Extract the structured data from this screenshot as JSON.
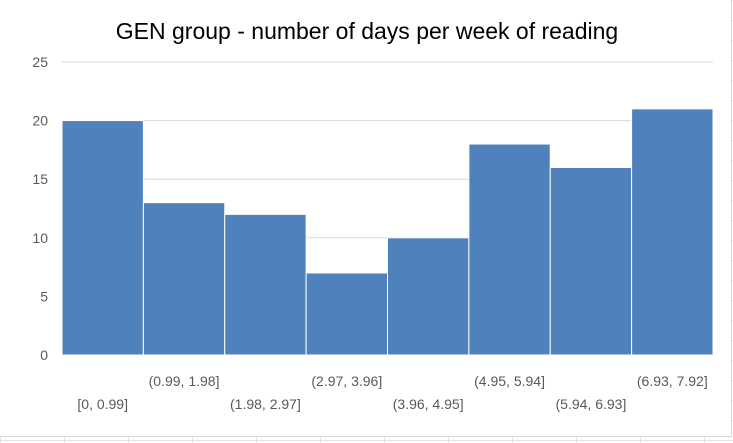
{
  "chart_data": {
    "type": "bar",
    "title": "GEN group - number of days per week of reading",
    "categories": [
      "[0, 0.99]",
      "(0.99, 1.98]",
      "(1.98, 2.97]",
      "(2.97, 3.96]",
      "(3.96, 4.95]",
      "(4.95, 5.94]",
      "(5.94, 6.93]",
      "(6.93, 7.92]"
    ],
    "values": [
      20,
      13,
      12,
      7,
      10,
      18,
      16,
      21
    ],
    "xlabel": "",
    "ylabel": "",
    "ylim": [
      0,
      25
    ],
    "yticks": [
      "0",
      "5",
      "10",
      "15",
      "20",
      "25"
    ],
    "grid": true,
    "legend": "none",
    "bar_color": "#4f81bd",
    "bar_edge_color": "#ffffff",
    "grid_color": "#d9d9d9"
  }
}
